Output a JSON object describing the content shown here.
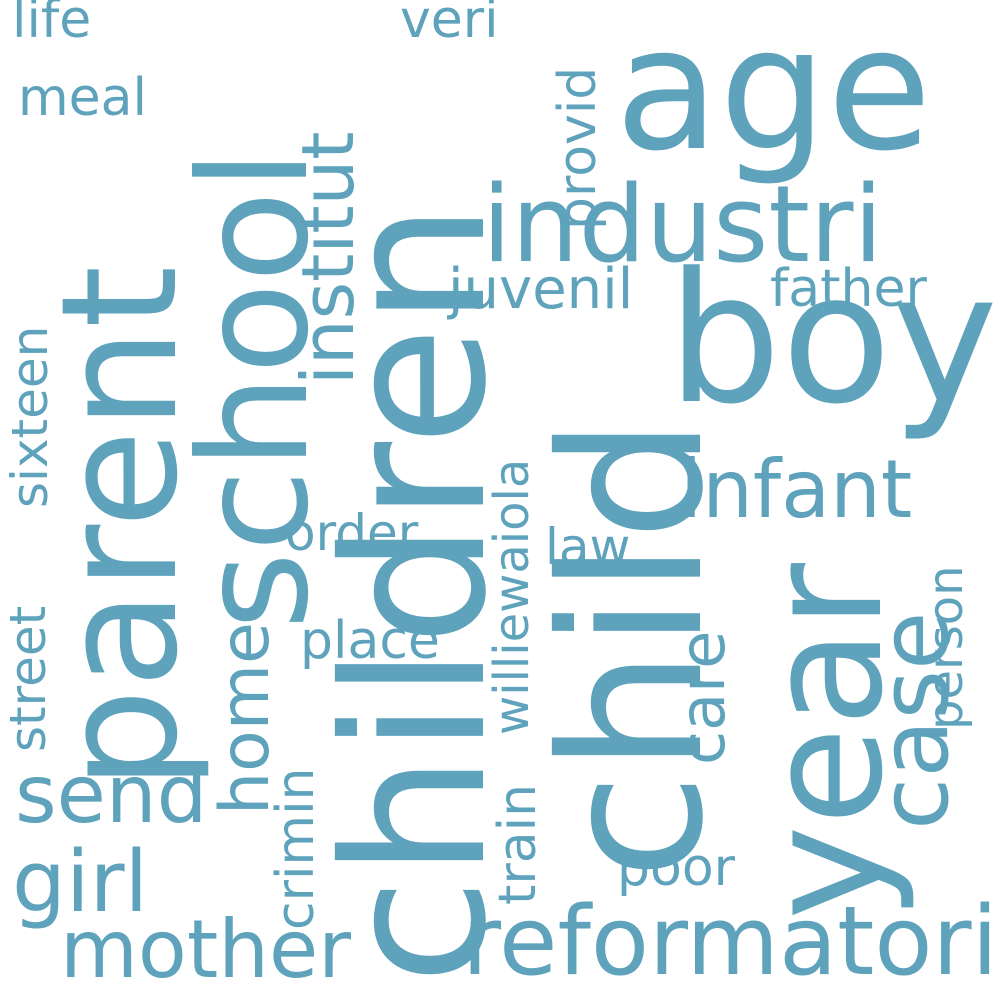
{
  "color": "#5ea2bc",
  "background": "#ffffff",
  "words": [
    {
      "id": "children",
      "text": "children"
    },
    {
      "id": "child",
      "text": "child"
    },
    {
      "id": "parent",
      "text": "parent"
    },
    {
      "id": "school",
      "text": "school"
    },
    {
      "id": "year",
      "text": "year"
    },
    {
      "id": "age",
      "text": "age"
    },
    {
      "id": "boy",
      "text": "boy"
    },
    {
      "id": "industri",
      "text": "industri"
    },
    {
      "id": "reformatori",
      "text": "reformatori"
    },
    {
      "id": "case",
      "text": "case"
    },
    {
      "id": "mother",
      "text": "mother"
    },
    {
      "id": "infant",
      "text": "infant"
    },
    {
      "id": "girl",
      "text": "girl"
    },
    {
      "id": "send",
      "text": "send"
    },
    {
      "id": "institut",
      "text": "institut"
    },
    {
      "id": "home",
      "text": "home"
    },
    {
      "id": "care",
      "text": "care"
    },
    {
      "id": "juvenil",
      "text": "juvenil"
    },
    {
      "id": "father",
      "text": "father"
    },
    {
      "id": "williewaiola",
      "text": "williewaiola"
    },
    {
      "id": "order",
      "text": "order"
    },
    {
      "id": "place",
      "text": "place"
    },
    {
      "id": "provid",
      "text": "provid"
    },
    {
      "id": "street",
      "text": "street"
    },
    {
      "id": "sixteen",
      "text": "sixteen"
    },
    {
      "id": "crimin",
      "text": "crimin"
    },
    {
      "id": "train",
      "text": "train"
    },
    {
      "id": "poor",
      "text": "poor"
    },
    {
      "id": "person",
      "text": "person"
    },
    {
      "id": "law",
      "text": "law"
    },
    {
      "id": "meal",
      "text": "meal"
    },
    {
      "id": "life",
      "text": "life"
    },
    {
      "id": "veri",
      "text": "veri"
    }
  ]
}
